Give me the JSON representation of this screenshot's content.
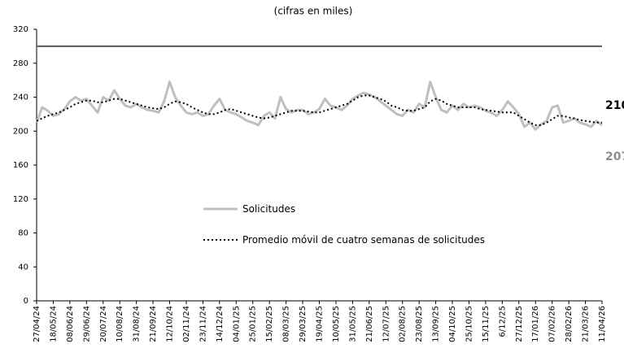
{
  "chart_data": {
    "type": "line",
    "subtitle": "(cifras en miles)",
    "categories": [
      "27/04/24",
      null,
      null,
      "18/05/24",
      null,
      null,
      "08/06/24",
      null,
      null,
      "29/06/24",
      null,
      null,
      "20/07/24",
      null,
      null,
      "10/08/24",
      null,
      null,
      "31/08/24",
      null,
      null,
      "21/09/24",
      null,
      null,
      "12/10/24",
      null,
      null,
      "02/11/24",
      null,
      null,
      "23/11/24",
      null,
      null,
      "14/12/24",
      null,
      null,
      "04/01/25",
      null,
      null,
      "25/01/25",
      null,
      null,
      "15/02/25",
      null,
      null,
      "08/03/25",
      null,
      null,
      "29/03/25",
      null,
      null,
      "19/04/25",
      null,
      null,
      "10/05/25",
      null,
      null,
      "31/05/25",
      null,
      null,
      "21/06/25",
      null,
      null,
      "12/07/25",
      null,
      null,
      "02/08/25",
      null,
      null,
      "23/08/25",
      null,
      null,
      "13/09/25",
      null,
      null,
      "04/10/25",
      null,
      null,
      "25/10/25",
      null,
      null,
      "15/11/25",
      null,
      null,
      "6/12/25",
      null,
      null,
      "27/12/25",
      null,
      null,
      "17/01/26",
      null,
      null,
      "07/02/26",
      null,
      null,
      "28/02/26",
      null,
      null,
      "21/03/26",
      null,
      null,
      "11/04/26"
    ],
    "series": [
      {
        "name": "Solicitudes",
        "color": "#bfbfbf",
        "style": "solid",
        "values": [
          210,
          228,
          224,
          218,
          220,
          226,
          235,
          240,
          236,
          238,
          230,
          222,
          240,
          236,
          248,
          238,
          230,
          228,
          232,
          228,
          225,
          224,
          222,
          235,
          258,
          240,
          230,
          222,
          220,
          222,
          218,
          220,
          230,
          238,
          225,
          222,
          220,
          216,
          212,
          210,
          207,
          218,
          222,
          215,
          240,
          226,
          222,
          225,
          225,
          220,
          222,
          226,
          238,
          230,
          228,
          225,
          230,
          238,
          242,
          245,
          243,
          240,
          235,
          230,
          225,
          220,
          218,
          225,
          222,
          232,
          228,
          258,
          240,
          225,
          222,
          230,
          225,
          232,
          228,
          230,
          228,
          224,
          222,
          218,
          225,
          235,
          228,
          220,
          205,
          210,
          202,
          208,
          212,
          228,
          230,
          210,
          212,
          215,
          210,
          208,
          205,
          212,
          207
        ]
      },
      {
        "name": "Promedio móvil de cuatro semanas de solicitudes",
        "color": "#000000",
        "style": "dotted",
        "values": [
          212,
          215,
          218,
          220,
          222,
          225,
          228,
          232,
          234,
          236,
          236,
          234,
          234,
          236,
          238,
          238,
          236,
          234,
          232,
          230,
          228,
          227,
          226,
          228,
          232,
          235,
          234,
          232,
          228,
          225,
          222,
          220,
          220,
          222,
          225,
          226,
          224,
          222,
          220,
          218,
          216,
          215,
          216,
          218,
          220,
          222,
          224,
          224,
          224,
          223,
          222,
          222,
          224,
          226,
          228,
          230,
          232,
          236,
          240,
          242,
          242,
          240,
          238,
          235,
          230,
          228,
          225,
          224,
          224,
          226,
          228,
          235,
          238,
          236,
          232,
          230,
          228,
          228,
          228,
          228,
          226,
          225,
          224,
          223,
          222,
          222,
          222,
          218,
          214,
          210,
          207,
          207,
          210,
          214,
          218,
          218,
          216,
          215,
          213,
          212,
          211,
          210,
          210
        ]
      }
    ],
    "reference_line": 300,
    "reference_color": "#595959",
    "ylim": [
      0,
      320
    ],
    "yticks": [
      0,
      40,
      80,
      120,
      160,
      200,
      240,
      280,
      320
    ]
  }
}
